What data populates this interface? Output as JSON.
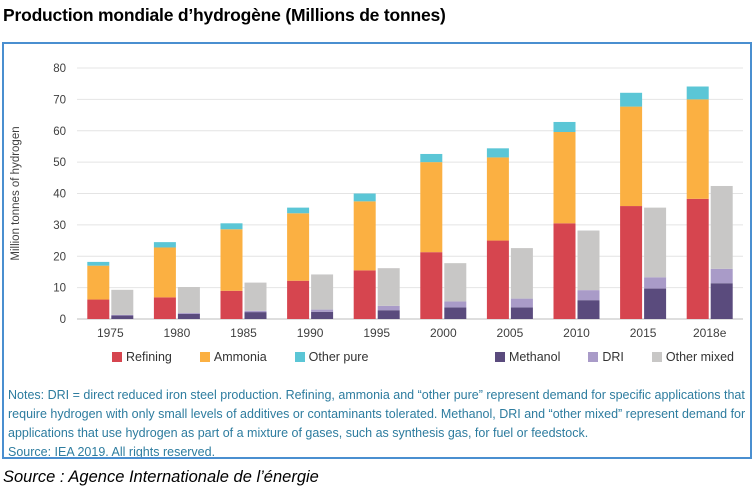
{
  "page_title": "Production mondiale d’hydrogène (Millions de tonnes)",
  "figure": {
    "notes": "Notes: DRI = direct reduced iron steel production. Refining, ammonia and “other pure” represent demand for specific applications that require hydrogen with only small levels of additives or contaminants tolerated. Methanol, DRI and “other mixed” represent demand for applications that use hydrogen as part of a mixture of gases, such as synthesis gas, for fuel or feedstock.",
    "source_inner": "Source: IEA 2019. All rights reserved.",
    "border_color": "#4a8fd0",
    "notes_color": "#2d7c9f"
  },
  "caption": "Source : Agence Internationale de l’énergie",
  "chart_data": {
    "type": "bar",
    "stacked": true,
    "title": "",
    "ylabel": "Million tonnes of hydrogen",
    "xlabel": "",
    "ylim": [
      0,
      80
    ],
    "ytick_step": 10,
    "grid": true,
    "legend_position": "bottom",
    "categories": [
      "1975",
      "1980",
      "1985",
      "1990",
      "1995",
      "2000",
      "2005",
      "2010",
      "2015",
      "2018e"
    ],
    "groups": [
      {
        "name": "pure-hydrogen",
        "series": [
          {
            "name": "Refining",
            "color": "#d6454f",
            "values": [
              6.2,
              6.9,
              9.0,
              12.2,
              15.5,
              21.3,
              25.0,
              30.5,
              36.0,
              38.3
            ]
          },
          {
            "name": "Ammonia",
            "color": "#fbb042",
            "values": [
              10.8,
              15.9,
              19.6,
              21.5,
              22.0,
              28.7,
              26.5,
              29.1,
              31.7,
              31.7
            ]
          },
          {
            "name": "Other pure",
            "color": "#5bc6d6",
            "values": [
              1.2,
              1.7,
              1.9,
              1.8,
              2.5,
              2.6,
              2.9,
              3.2,
              4.4,
              4.1
            ]
          }
        ]
      },
      {
        "name": "mixed-hydrogen",
        "series": [
          {
            "name": "Methanol",
            "color": "#5a4b7d",
            "values": [
              1.1,
              1.6,
              2.2,
              2.3,
              2.8,
              3.7,
              3.7,
              6.0,
              9.7,
              11.4
            ]
          },
          {
            "name": "DRI",
            "color": "#a99bc8",
            "values": [
              0.2,
              0.3,
              0.4,
              0.7,
              1.4,
              1.9,
              2.8,
              3.2,
              3.6,
              4.6
            ]
          },
          {
            "name": "Other mixed",
            "color": "#c8c7c6",
            "values": [
              8.0,
              8.3,
              9.0,
              11.2,
              12.0,
              12.2,
              16.1,
              19.0,
              22.2,
              26.4
            ]
          }
        ]
      }
    ],
    "axis_text_color": "#404040",
    "gridline_color": "#e4e4e4",
    "baseline_color": "#bcbcbc"
  }
}
